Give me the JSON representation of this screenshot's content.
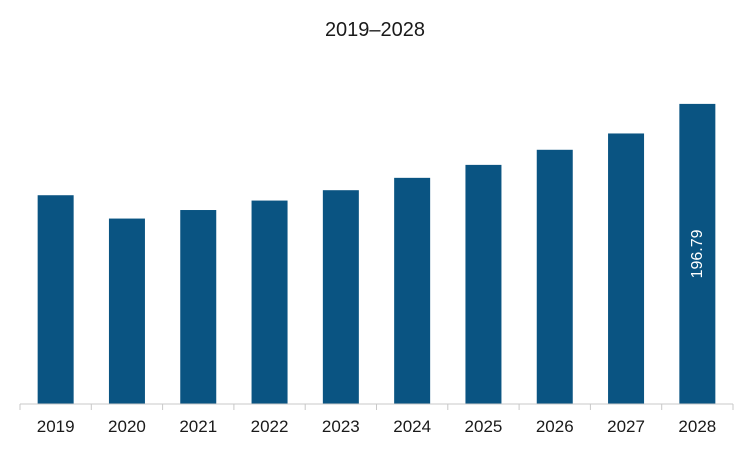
{
  "chart_data": {
    "type": "bar",
    "title": "2019–2028",
    "xlabel": "",
    "ylabel": "",
    "categories": [
      "2019",
      "2020",
      "2021",
      "2022",
      "2023",
      "2024",
      "2025",
      "2026",
      "2027",
      "2028"
    ],
    "values": [
      136.9,
      121.6,
      127.2,
      133.4,
      140.2,
      148.3,
      156.8,
      166.7,
      177.4,
      196.79
    ],
    "data_labels": {
      "2028": "196.79"
    },
    "ylim": [
      0,
      200
    ],
    "grid": false,
    "legend": "none",
    "bar_color": "#0a5482",
    "axis_color": "#c8c8c8"
  }
}
